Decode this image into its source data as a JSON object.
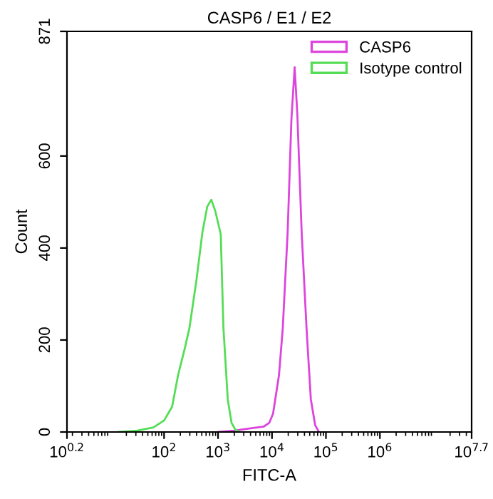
{
  "chart_data": {
    "type": "line",
    "title": "CASP6 / E1 / E2",
    "xlabel": "FITC-A",
    "ylabel": "Count",
    "log": "x",
    "legend": "top right",
    "marker": "none",
    "line_style": "solid",
    "grid": false,
    "xlim": [
      1.585,
      50118723
    ],
    "xticks": [
      {
        "value": 1.585,
        "label": "10$^{0.2}$"
      },
      {
        "value": 100,
        "label": "10$^{2}$"
      },
      {
        "value": 1000,
        "label": "10$^{3}$"
      },
      {
        "value": 10000,
        "label": "10$^{4}$"
      },
      {
        "value": 100000,
        "label": "10$^{5}$"
      },
      {
        "value": 1000000,
        "label": "10$^{6}$"
      },
      {
        "value": 50118723,
        "label": "10$^{7.7}$"
      }
    ],
    "ylim": [
      0,
      871
    ],
    "yticks": [
      0,
      200,
      400,
      600,
      871
    ],
    "series": [
      {
        "name": "CASP6",
        "color": "#dd44dd",
        "x": [
          1000,
          1995,
          3981,
          7079,
          8913,
          10471,
          13490,
          15849,
          19498,
          22909,
          26303,
          29512,
          35481,
          43652,
          52481,
          63096,
          74131
        ],
        "values": [
          0,
          3,
          8,
          12,
          20,
          40,
          124,
          226,
          434,
          680,
          793,
          690,
          434,
          226,
          71,
          15,
          0
        ]
      },
      {
        "name": "Isotype control",
        "color": "#55dd55",
        "x": [
          14.1,
          31.6,
          63.1,
          100,
          141,
          182,
          240,
          295,
          398,
          513,
          631,
          750,
          891,
          1122,
          1259,
          1514,
          1778,
          2089,
          2512
        ],
        "values": [
          0,
          3,
          10,
          25,
          55,
          124,
          180,
          226,
          330,
          434,
          490,
          505,
          480,
          430,
          226,
          71,
          20,
          5,
          0
        ]
      }
    ]
  }
}
